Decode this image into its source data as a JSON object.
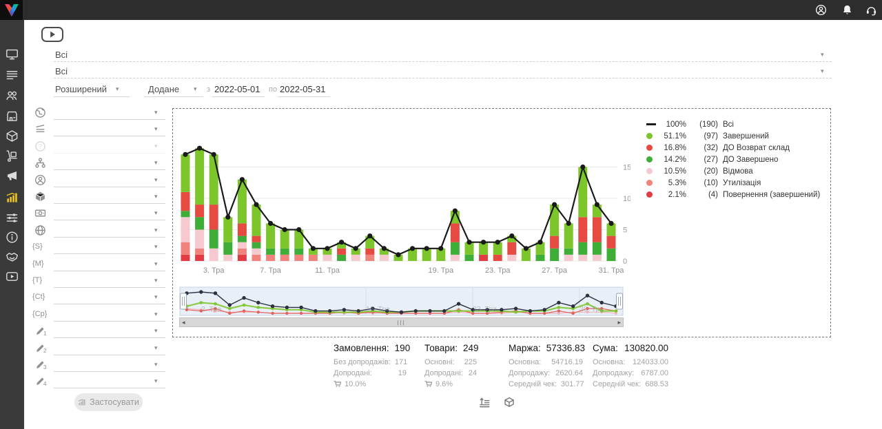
{
  "topbar": {
    "icons": [
      {
        "name": "user-icon"
      },
      {
        "name": "bell-icon"
      },
      {
        "name": "headset-icon"
      }
    ]
  },
  "sidebar": {
    "items": [
      {
        "id": "dashboard",
        "icon": "monitor-icon",
        "active": false
      },
      {
        "id": "orders",
        "icon": "list-icon",
        "active": false
      },
      {
        "id": "clients",
        "icon": "users-icon",
        "active": false
      },
      {
        "id": "warehouse",
        "icon": "store-icon",
        "active": false
      },
      {
        "id": "products",
        "icon": "cube-icon",
        "active": false
      },
      {
        "id": "supply",
        "icon": "trolley-icon",
        "active": false
      },
      {
        "id": "marketing",
        "icon": "megaphone-icon",
        "active": false
      },
      {
        "id": "statistics",
        "icon": "chart-icon",
        "active": true
      },
      {
        "id": "settings",
        "icon": "sliders-icon",
        "active": false
      },
      {
        "id": "info",
        "icon": "info-icon",
        "active": false
      },
      {
        "id": "partners",
        "icon": "handshake-icon",
        "active": false
      },
      {
        "id": "video",
        "icon": "play-icon",
        "active": false
      }
    ]
  },
  "filters": {
    "category_filter": {
      "value": "Всі"
    },
    "product_filter": {
      "value": "Всі"
    },
    "search_mode": {
      "value": "Розширений"
    },
    "date_field": {
      "value": "Додане"
    },
    "date_from_label": "з",
    "date_from": "2022-05-01",
    "date_to_label": "по",
    "date_to": "2022-05-31",
    "side_selects": [
      {
        "icon": "globe-earth-icon",
        "value": ""
      },
      {
        "icon": "layers-icon",
        "value": ""
      },
      {
        "icon": "question-icon",
        "value": "",
        "disabled": true
      },
      {
        "icon": "sitemap-icon",
        "value": ""
      },
      {
        "icon": "person-icon",
        "value": ""
      },
      {
        "icon": "cube-solid-icon",
        "value": ""
      },
      {
        "icon": "banknote-icon",
        "value": ""
      },
      {
        "icon": "globe-grid-icon",
        "value": ""
      },
      {
        "icon": "brace-icon",
        "glyph": "{S}",
        "value": ""
      },
      {
        "icon": "brace-icon",
        "glyph": "{M}",
        "value": ""
      },
      {
        "icon": "brace-icon",
        "glyph": "{T}",
        "value": ""
      },
      {
        "icon": "brace-icon",
        "glyph": "{Ct}",
        "value": ""
      },
      {
        "icon": "brace-icon",
        "glyph": "{Cp}",
        "value": ""
      },
      {
        "icon": "pencil-icon",
        "sub": "1",
        "value": ""
      },
      {
        "icon": "pencil-icon",
        "sub": "2",
        "value": ""
      },
      {
        "icon": "pencil-icon",
        "sub": "3",
        "value": ""
      },
      {
        "icon": "pencil-icon",
        "sub": "4",
        "value": ""
      }
    ],
    "apply_button": "Застосувати"
  },
  "chart_data": {
    "type": "bar",
    "stacked": true,
    "title": "",
    "xlabel": "",
    "ylabel": "",
    "ylim": [
      0,
      20
    ],
    "yticks": [
      0,
      5,
      10,
      15
    ],
    "categories": [
      "1",
      "2",
      "3",
      "4",
      "5",
      "6",
      "7",
      "8",
      "9",
      "10",
      "11",
      "12",
      "13",
      "14",
      "15",
      "16",
      "17",
      "18",
      "19",
      "20",
      "21",
      "22",
      "23",
      "24",
      "25",
      "26",
      "27",
      "28",
      "29",
      "30",
      "31"
    ],
    "xticks": [
      {
        "day": 3,
        "label": "3. Тра"
      },
      {
        "day": 7,
        "label": "7. Тра"
      },
      {
        "day": 11,
        "label": "11. Тра"
      },
      {
        "day": 19,
        "label": "19. Тра"
      },
      {
        "day": 23,
        "label": "23. Тра"
      },
      {
        "day": 27,
        "label": "27. Тра"
      },
      {
        "day": 31,
        "label": "31. Тра"
      }
    ],
    "series": [
      {
        "name": "Завершений",
        "color": "#7cc62c",
        "values": [
          6,
          9,
          8,
          4,
          7,
          5,
          4,
          3,
          3,
          1,
          1,
          1,
          1,
          2,
          1,
          1,
          2,
          2,
          2,
          2,
          2,
          2,
          2,
          1,
          2,
          2,
          5,
          4,
          8,
          2,
          2
        ]
      },
      {
        "name": "ДО Возврат склад",
        "color": "#e64b42",
        "values": [
          3,
          2,
          4,
          0,
          2,
          1,
          0,
          0,
          0,
          0,
          0,
          1,
          0,
          1,
          0,
          0,
          0,
          0,
          0,
          3,
          0,
          0,
          1,
          2,
          0,
          0,
          2,
          0,
          4,
          4,
          2
        ]
      },
      {
        "name": "ДО Завершено",
        "color": "#3fae39",
        "values": [
          1,
          2,
          3,
          2,
          1,
          1,
          1,
          1,
          1,
          0,
          0,
          1,
          0,
          0,
          0,
          0,
          0,
          0,
          0,
          2,
          1,
          0,
          0,
          0,
          0,
          1,
          2,
          1,
          2,
          2,
          2
        ]
      },
      {
        "name": "Відмова",
        "color": "#f5c9cf",
        "values": [
          4,
          3,
          2,
          1,
          1,
          1,
          0,
          0,
          0,
          0,
          1,
          0,
          1,
          0,
          1,
          0,
          0,
          0,
          0,
          1,
          0,
          0,
          0,
          1,
          0,
          0,
          0,
          1,
          1,
          1,
          0
        ]
      },
      {
        "name": "Утилізація",
        "color": "#f0837b",
        "values": [
          2,
          1,
          0,
          0,
          1,
          1,
          1,
          1,
          1,
          1,
          0,
          0,
          0,
          1,
          0,
          0,
          0,
          0,
          0,
          0,
          0,
          0,
          0,
          0,
          0,
          0,
          0,
          0,
          0,
          0,
          0
        ]
      },
      {
        "name": "Повернення (завершений)",
        "color": "#e23c44",
        "values": [
          1,
          1,
          0,
          0,
          1,
          0,
          0,
          0,
          0,
          0,
          0,
          0,
          0,
          0,
          0,
          0,
          0,
          0,
          0,
          0,
          0,
          1,
          0,
          0,
          0,
          0,
          0,
          0,
          0,
          0,
          0
        ]
      }
    ],
    "line": {
      "name": "Всі",
      "color": "#1a1a1a",
      "values": [
        17,
        18,
        17,
        7,
        13,
        9,
        6,
        5,
        5,
        2,
        2,
        3,
        2,
        4,
        2,
        1,
        2,
        2,
        2,
        8,
        3,
        3,
        3,
        4,
        2,
        3,
        9,
        6,
        15,
        9,
        6
      ]
    },
    "legend": [
      {
        "marker": "line",
        "color": "#1a1a1a",
        "percent": "100%",
        "count": "(190)",
        "label": "Всі"
      },
      {
        "marker": "dot",
        "color": "#7cc62c",
        "percent": "51.1%",
        "count": "(97)",
        "label": "Завершений"
      },
      {
        "marker": "dot",
        "color": "#e64b42",
        "percent": "16.8%",
        "count": "(32)",
        "label": "ДО Возврат склад"
      },
      {
        "marker": "dot",
        "color": "#3fae39",
        "percent": "14.2%",
        "count": "(27)",
        "label": "ДО Завершено"
      },
      {
        "marker": "dot",
        "color": "#f5c9cf",
        "percent": "10.5%",
        "count": "(20)",
        "label": "Відмова"
      },
      {
        "marker": "dot",
        "color": "#f0837b",
        "percent": "5.3%",
        "count": "(10)",
        "label": "Утилізація"
      },
      {
        "marker": "dot",
        "color": "#e23c44",
        "percent": "2.1%",
        "count": "(4)",
        "label": "Повернення (завершений)"
      }
    ],
    "navigator": {
      "labels": [
        {
          "text": "2. Тра",
          "pos": 0.05
        },
        {
          "text": "16. Тра",
          "pos": 0.42
        },
        {
          "text": "23. Тра",
          "pos": 0.66
        },
        {
          "text": "30. Тра",
          "pos": 0.9
        }
      ]
    }
  },
  "stats": {
    "columns": [
      {
        "title": "Замовлення:",
        "value": "190",
        "rows": [
          {
            "label": "Без допродажів:",
            "value": "171"
          },
          {
            "label": "Допродані:",
            "value": "19"
          }
        ],
        "cart_percent": "10.0%"
      },
      {
        "title": "Товари:",
        "value": "249",
        "rows": [
          {
            "label": "Основні:",
            "value": "225"
          },
          {
            "label": "Допродані:",
            "value": "24"
          }
        ],
        "cart_percent": "9.6%"
      },
      {
        "title": "Маржа:",
        "value": "57336.83",
        "rows": [
          {
            "label": "Основна:",
            "value": "54716.19"
          },
          {
            "label": "Допродажу:",
            "value": "2620.64"
          },
          {
            "label": "Середній чек:",
            "value": "301.77"
          }
        ]
      },
      {
        "title": "Сума:",
        "value": "130820.00",
        "rows": [
          {
            "label": "Основна:",
            "value": "124033.00"
          },
          {
            "label": "Допродажу:",
            "value": "6787.00"
          },
          {
            "label": "Середній чек:",
            "value": "688.53"
          }
        ]
      }
    ],
    "toggles": [
      {
        "icon": "sort-list-icon"
      },
      {
        "icon": "cube-outline-icon"
      }
    ]
  }
}
